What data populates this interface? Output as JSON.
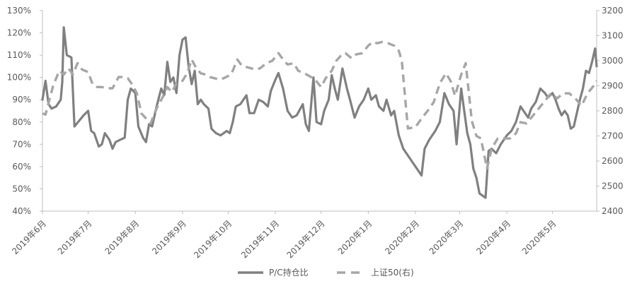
{
  "chart_data": {
    "type": "line",
    "x_ticks": [
      "2019年6月",
      "2019年7月",
      "2019年8月",
      "2019年9月",
      "2019年10月",
      "2019年11月",
      "2019年12月",
      "2020年1月",
      "2020年2月",
      "2020年3月",
      "2020年4月",
      "2020年5月"
    ],
    "y_left": {
      "ticks": [
        "40%",
        "50%",
        "60%",
        "70%",
        "80%",
        "90%",
        "100%",
        "110%",
        "120%",
        "130%"
      ],
      "range": [
        40,
        130
      ]
    },
    "y_right": {
      "ticks": [
        "2400",
        "2500",
        "2600",
        "2700",
        "2800",
        "2900",
        "3000",
        "3100",
        "3200"
      ],
      "range": [
        2400,
        3200
      ]
    },
    "grid": false,
    "legend_position": "bottom",
    "series": [
      {
        "name": "P/C持仓比",
        "axis": "left",
        "style": "solid",
        "color": "#808080",
        "points": [
          [
            "2019-06-01",
            90
          ],
          [
            "2019-06-03",
            98.5
          ],
          [
            "2019-06-05",
            88
          ],
          [
            "2019-06-07",
            86
          ],
          [
            "2019-06-10",
            87
          ],
          [
            "2019-06-13",
            90
          ],
          [
            "2019-06-14",
            98
          ],
          [
            "2019-06-15",
            122.5
          ],
          [
            "2019-06-17",
            110
          ],
          [
            "2019-06-20",
            109
          ],
          [
            "2019-06-22",
            78
          ],
          [
            "2019-06-25",
            80.5
          ],
          [
            "2019-06-28",
            83
          ],
          [
            "2019-07-01",
            85
          ],
          [
            "2019-07-03",
            76
          ],
          [
            "2019-07-05",
            75
          ],
          [
            "2019-07-08",
            69
          ],
          [
            "2019-07-10",
            70
          ],
          [
            "2019-07-12",
            75
          ],
          [
            "2019-07-15",
            72
          ],
          [
            "2019-07-17",
            68
          ],
          [
            "2019-07-19",
            71
          ],
          [
            "2019-07-22",
            72
          ],
          [
            "2019-07-25",
            73
          ],
          [
            "2019-07-27",
            90
          ],
          [
            "2019-07-29",
            95
          ],
          [
            "2019-08-01",
            93
          ],
          [
            "2019-08-03",
            78
          ],
          [
            "2019-08-06",
            73
          ],
          [
            "2019-08-08",
            71
          ],
          [
            "2019-08-10",
            79
          ],
          [
            "2019-08-12",
            78
          ],
          [
            "2019-08-15",
            87
          ],
          [
            "2019-08-18",
            95
          ],
          [
            "2019-08-20",
            92
          ],
          [
            "2019-08-22",
            107
          ],
          [
            "2019-08-24",
            98
          ],
          [
            "2019-08-26",
            100
          ],
          [
            "2019-08-28",
            93
          ],
          [
            "2019-08-30",
            110
          ],
          [
            "2019-09-01",
            117
          ],
          [
            "2019-09-03",
            118
          ],
          [
            "2019-09-05",
            105
          ],
          [
            "2019-09-07",
            97
          ],
          [
            "2019-09-09",
            103
          ],
          [
            "2019-09-11",
            88
          ],
          [
            "2019-09-13",
            90
          ],
          [
            "2019-09-15",
            88
          ],
          [
            "2019-09-18",
            86
          ],
          [
            "2019-09-20",
            77
          ],
          [
            "2019-09-23",
            75
          ],
          [
            "2019-09-26",
            74
          ],
          [
            "2019-09-30",
            76
          ],
          [
            "2019-10-02",
            75
          ],
          [
            "2019-10-04",
            80
          ],
          [
            "2019-10-06",
            87
          ],
          [
            "2019-10-09",
            88
          ],
          [
            "2019-10-11",
            90
          ],
          [
            "2019-10-13",
            92
          ],
          [
            "2019-10-15",
            84
          ],
          [
            "2019-10-18",
            84
          ],
          [
            "2019-10-21",
            90
          ],
          [
            "2019-10-24",
            89
          ],
          [
            "2019-10-27",
            87
          ],
          [
            "2019-10-29",
            94
          ],
          [
            "2019-11-01",
            99
          ],
          [
            "2019-11-03",
            102
          ],
          [
            "2019-11-06",
            95
          ],
          [
            "2019-11-09",
            85
          ],
          [
            "2019-11-12",
            82
          ],
          [
            "2019-11-15",
            83
          ],
          [
            "2019-11-19",
            88
          ],
          [
            "2019-11-21",
            79
          ],
          [
            "2019-11-23",
            76
          ],
          [
            "2019-11-26",
            100
          ],
          [
            "2019-11-28",
            80
          ],
          [
            "2019-12-01",
            79
          ],
          [
            "2019-12-03",
            85
          ],
          [
            "2019-12-06",
            90
          ],
          [
            "2019-12-08",
            101
          ],
          [
            "2019-12-10",
            95
          ],
          [
            "2019-12-12",
            90
          ],
          [
            "2019-12-15",
            104
          ],
          [
            "2019-12-18",
            95
          ],
          [
            "2019-12-20",
            90
          ],
          [
            "2019-12-23",
            82
          ],
          [
            "2019-12-26",
            87
          ],
          [
            "2019-12-29",
            90
          ],
          [
            "2020-01-01",
            95
          ],
          [
            "2020-01-03",
            90
          ],
          [
            "2020-01-06",
            92
          ],
          [
            "2020-01-08",
            87
          ],
          [
            "2020-01-11",
            85
          ],
          [
            "2020-01-13",
            90
          ],
          [
            "2020-01-16",
            83
          ],
          [
            "2020-01-18",
            85
          ],
          [
            "2020-01-21",
            74
          ],
          [
            "2020-01-24",
            68
          ],
          [
            "2020-02-01",
            60
          ],
          [
            "2020-02-05",
            56
          ],
          [
            "2020-02-07",
            68
          ],
          [
            "2020-02-10",
            72
          ],
          [
            "2020-02-14",
            76
          ],
          [
            "2020-02-17",
            80
          ],
          [
            "2020-02-20",
            93
          ],
          [
            "2020-02-23",
            88
          ],
          [
            "2020-02-26",
            85
          ],
          [
            "2020-02-28",
            70
          ],
          [
            "2020-03-02",
            95
          ],
          [
            "2020-03-04",
            85
          ],
          [
            "2020-03-06",
            75
          ],
          [
            "2020-03-08",
            70
          ],
          [
            "2020-03-10",
            59
          ],
          [
            "2020-03-12",
            55
          ],
          [
            "2020-03-14",
            48
          ],
          [
            "2020-03-16",
            47
          ],
          [
            "2020-03-18",
            46
          ],
          [
            "2020-03-20",
            67
          ],
          [
            "2020-03-22",
            68
          ],
          [
            "2020-03-25",
            66
          ],
          [
            "2020-03-28",
            70
          ],
          [
            "2020-04-01",
            74
          ],
          [
            "2020-04-04",
            76
          ],
          [
            "2020-04-07",
            80
          ],
          [
            "2020-04-10",
            87
          ],
          [
            "2020-04-12",
            85
          ],
          [
            "2020-04-15",
            82
          ],
          [
            "2020-04-17",
            86
          ],
          [
            "2020-04-20",
            89
          ],
          [
            "2020-04-23",
            95
          ],
          [
            "2020-04-26",
            93
          ],
          [
            "2020-04-28",
            91
          ],
          [
            "2020-05-01",
            93
          ],
          [
            "2020-05-03",
            90
          ],
          [
            "2020-05-05",
            86
          ],
          [
            "2020-05-07",
            83
          ],
          [
            "2020-05-09",
            85
          ],
          [
            "2020-05-11",
            83
          ],
          [
            "2020-05-13",
            77
          ],
          [
            "2020-05-15",
            78
          ],
          [
            "2020-05-17",
            84
          ],
          [
            "2020-05-19",
            90
          ],
          [
            "2020-05-21",
            95
          ],
          [
            "2020-05-23",
            103
          ],
          [
            "2020-05-25",
            102
          ],
          [
            "2020-05-27",
            107
          ],
          [
            "2020-05-29",
            113
          ],
          [
            "2020-05-30",
            105
          ]
        ]
      },
      {
        "name": "上证50(右)",
        "axis": "right",
        "style": "dashed",
        "color": "#a6a6a6",
        "points": [
          [
            "2019-06-01",
            2790
          ],
          [
            "2019-06-03",
            2785
          ],
          [
            "2019-06-08",
            2900
          ],
          [
            "2019-06-12",
            2960
          ],
          [
            "2019-06-15",
            2945
          ],
          [
            "2019-06-18",
            2970
          ],
          [
            "2019-06-21",
            2945
          ],
          [
            "2019-06-24",
            2990
          ],
          [
            "2019-06-27",
            2965
          ],
          [
            "2019-07-01",
            2955
          ],
          [
            "2019-07-04",
            2905
          ],
          [
            "2019-07-07",
            2895
          ],
          [
            "2019-07-10",
            2895
          ],
          [
            "2019-07-14",
            2890
          ],
          [
            "2019-07-17",
            2890
          ],
          [
            "2019-07-21",
            2935
          ],
          [
            "2019-07-24",
            2935
          ],
          [
            "2019-07-27",
            2930
          ],
          [
            "2019-07-30",
            2905
          ],
          [
            "2019-08-02",
            2870
          ],
          [
            "2019-08-05",
            2790
          ],
          [
            "2019-08-08",
            2770
          ],
          [
            "2019-08-11",
            2750
          ],
          [
            "2019-08-15",
            2810
          ],
          [
            "2019-08-19",
            2855
          ],
          [
            "2019-08-22",
            2895
          ],
          [
            "2019-08-25",
            2875
          ],
          [
            "2019-08-28",
            2910
          ],
          [
            "2019-09-01",
            2920
          ],
          [
            "2019-09-04",
            2950
          ],
          [
            "2019-09-07",
            3005
          ],
          [
            "2019-09-10",
            2970
          ],
          [
            "2019-09-13",
            2950
          ],
          [
            "2019-09-16",
            2945
          ],
          [
            "2019-09-19",
            2935
          ],
          [
            "2019-09-22",
            2930
          ],
          [
            "2019-09-25",
            2925
          ],
          [
            "2019-09-28",
            2930
          ],
          [
            "2019-10-03",
            2945
          ],
          [
            "2019-10-07",
            3005
          ],
          [
            "2019-10-10",
            2980
          ],
          [
            "2019-10-13",
            2975
          ],
          [
            "2019-10-16",
            2970
          ],
          [
            "2019-10-19",
            2965
          ],
          [
            "2019-10-22",
            2970
          ],
          [
            "2019-10-26",
            2990
          ],
          [
            "2019-10-30",
            3000
          ],
          [
            "2019-11-03",
            3030
          ],
          [
            "2019-11-06",
            3005
          ],
          [
            "2019-11-09",
            2985
          ],
          [
            "2019-11-13",
            2990
          ],
          [
            "2019-11-16",
            2960
          ],
          [
            "2019-11-20",
            2950
          ],
          [
            "2019-11-23",
            2940
          ],
          [
            "2019-11-27",
            2925
          ],
          [
            "2019-12-01",
            2895
          ],
          [
            "2019-12-04",
            2930
          ],
          [
            "2019-12-08",
            2960
          ],
          [
            "2019-12-11",
            3000
          ],
          [
            "2019-12-14",
            3020
          ],
          [
            "2019-12-17",
            3030
          ],
          [
            "2019-12-21",
            3010
          ],
          [
            "2019-12-24",
            3025
          ],
          [
            "2019-12-28",
            3030
          ],
          [
            "2020-01-01",
            3060
          ],
          [
            "2020-01-04",
            3075
          ],
          [
            "2020-01-07",
            3070
          ],
          [
            "2020-01-10",
            3075
          ],
          [
            "2020-01-14",
            3070
          ],
          [
            "2020-01-18",
            3060
          ],
          [
            "2020-01-21",
            3040
          ],
          [
            "2020-01-23",
            3000
          ],
          [
            "2020-01-27",
            2730
          ],
          [
            "2020-02-01",
            2735
          ],
          [
            "2020-02-05",
            2770
          ],
          [
            "2020-02-09",
            2800
          ],
          [
            "2020-02-13",
            2835
          ],
          [
            "2020-02-17",
            2910
          ],
          [
            "2020-02-21",
            2950
          ],
          [
            "2020-02-24",
            2920
          ],
          [
            "2020-02-27",
            2860
          ],
          [
            "2020-03-02",
            2945
          ],
          [
            "2020-03-05",
            2990
          ],
          [
            "2020-03-09",
            2760
          ],
          [
            "2020-03-12",
            2700
          ],
          [
            "2020-03-15",
            2690
          ],
          [
            "2020-03-19",
            2570
          ],
          [
            "2020-03-22",
            2650
          ],
          [
            "2020-03-26",
            2690
          ],
          [
            "2020-03-30",
            2690
          ],
          [
            "2020-04-03",
            2690
          ],
          [
            "2020-04-07",
            2710
          ],
          [
            "2020-04-10",
            2755
          ],
          [
            "2020-04-14",
            2750
          ],
          [
            "2020-04-18",
            2780
          ],
          [
            "2020-04-22",
            2810
          ],
          [
            "2020-04-26",
            2840
          ],
          [
            "2020-04-30",
            2870
          ],
          [
            "2020-05-04",
            2850
          ],
          [
            "2020-05-08",
            2870
          ],
          [
            "2020-05-12",
            2870
          ],
          [
            "2020-05-16",
            2850
          ],
          [
            "2020-05-20",
            2820
          ],
          [
            "2020-05-24",
            2870
          ],
          [
            "2020-05-28",
            2900
          ],
          [
            "2020-05-30",
            2920
          ]
        ]
      }
    ]
  }
}
